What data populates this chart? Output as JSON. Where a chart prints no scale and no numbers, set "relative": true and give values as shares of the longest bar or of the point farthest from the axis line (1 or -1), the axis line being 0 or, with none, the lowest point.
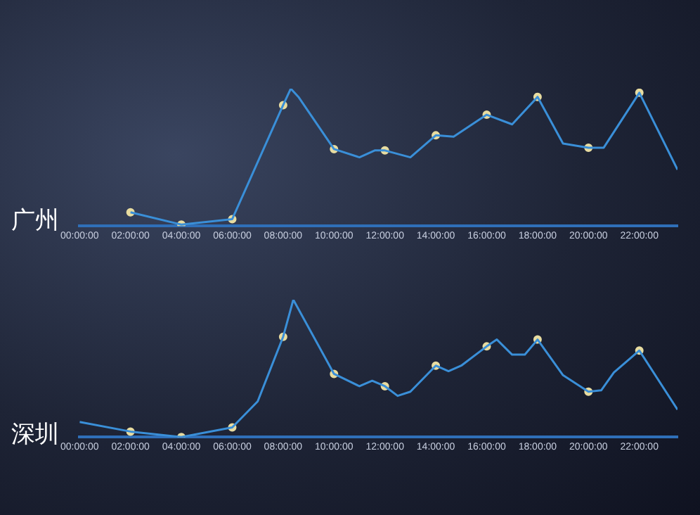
{
  "chart_data": [
    {
      "type": "line",
      "title": "广州",
      "relative": true,
      "xlim": [
        0,
        23.5
      ],
      "xticks": [
        {
          "value": 0,
          "label": "00:00:00"
        },
        {
          "value": 2,
          "label": "02:00:00"
        },
        {
          "value": 4,
          "label": "04:00:00"
        },
        {
          "value": 6,
          "label": "06:00:00"
        },
        {
          "value": 8,
          "label": "08:00:00"
        },
        {
          "value": 10,
          "label": "10:00:00"
        },
        {
          "value": 12,
          "label": "12:00:00"
        },
        {
          "value": 14,
          "label": "14:00:00"
        },
        {
          "value": 16,
          "label": "16:00:00"
        },
        {
          "value": 18,
          "label": "18:00:00"
        },
        {
          "value": 20,
          "label": "20:00:00"
        },
        {
          "value": 22,
          "label": "22:00:00"
        }
      ],
      "grid": false,
      "legend": false,
      "series": [
        {
          "color": "#3a8fd8",
          "marker": "none",
          "line_style": "solid",
          "x": [
            2,
            4,
            6,
            8,
            8.3,
            8.6,
            10,
            11,
            11.6,
            12,
            13,
            14,
            14.7,
            16,
            17,
            18,
            19,
            20,
            20.6,
            22,
            23.5
          ],
          "values": [
            0.1,
            0.01,
            0.05,
            0.88,
            1,
            0.94,
            0.56,
            0.5,
            0.55,
            0.55,
            0.5,
            0.66,
            0.65,
            0.81,
            0.74,
            0.94,
            0.6,
            0.57,
            0.57,
            0.97,
            0.41
          ]
        },
        {
          "type": "scatter",
          "color": "#e8dca0",
          "marker": "circle",
          "x": [
            2,
            4,
            6,
            8,
            10,
            12,
            14,
            16,
            18,
            20,
            22
          ],
          "values": [
            0.1,
            0.01,
            0.05,
            0.88,
            0.56,
            0.55,
            0.66,
            0.81,
            0.94,
            0.57,
            0.97
          ]
        }
      ]
    },
    {
      "type": "line",
      "title": "深圳",
      "relative": true,
      "xlim": [
        0,
        23.5
      ],
      "xticks": [
        {
          "value": 0,
          "label": "00:00:00"
        },
        {
          "value": 2,
          "label": "02:00:00"
        },
        {
          "value": 4,
          "label": "04:00:00"
        },
        {
          "value": 6,
          "label": "06:00:00"
        },
        {
          "value": 8,
          "label": "08:00:00"
        },
        {
          "value": 10,
          "label": "10:00:00"
        },
        {
          "value": 12,
          "label": "12:00:00"
        },
        {
          "value": 14,
          "label": "14:00:00"
        },
        {
          "value": 16,
          "label": "16:00:00"
        },
        {
          "value": 18,
          "label": "18:00:00"
        },
        {
          "value": 20,
          "label": "20:00:00"
        },
        {
          "value": 22,
          "label": "22:00:00"
        }
      ],
      "grid": false,
      "legend": false,
      "series": [
        {
          "color": "#3a8fd8",
          "marker": "none",
          "line_style": "solid",
          "x": [
            0,
            2,
            4,
            6,
            7,
            8,
            8.4,
            10,
            11,
            11.5,
            12,
            12.5,
            13,
            14,
            14.5,
            15,
            16,
            16.4,
            17,
            17.5,
            18,
            19,
            20,
            20.5,
            21,
            22,
            23.5
          ],
          "values": [
            0.11,
            0.04,
            0,
            0.07,
            0.26,
            0.73,
            1,
            0.46,
            0.37,
            0.41,
            0.37,
            0.3,
            0.33,
            0.52,
            0.48,
            0.52,
            0.66,
            0.71,
            0.6,
            0.6,
            0.71,
            0.45,
            0.33,
            0.34,
            0.47,
            0.63,
            0.2
          ]
        },
        {
          "type": "scatter",
          "color": "#e8dca0",
          "marker": "circle",
          "x": [
            2,
            4,
            6,
            8,
            10,
            12,
            14,
            16,
            18,
            20,
            22
          ],
          "values": [
            0.04,
            0,
            0.07,
            0.73,
            0.46,
            0.37,
            0.52,
            0.66,
            0.71,
            0.33,
            0.63
          ]
        }
      ]
    }
  ]
}
